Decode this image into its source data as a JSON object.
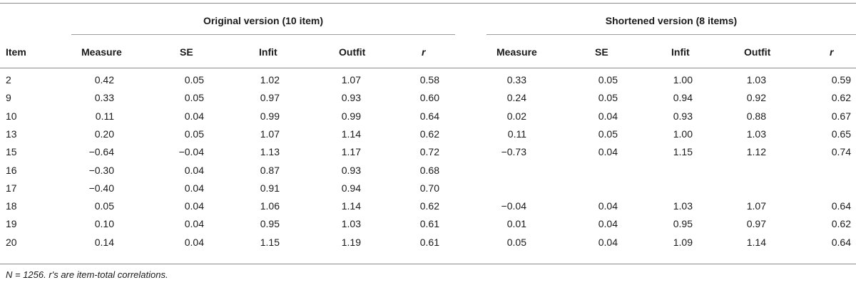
{
  "table": {
    "group_original": "Original version (10 item)",
    "group_shortened": "Shortened version (8 items)",
    "headers": {
      "item": "Item",
      "orig_measure": "Measure",
      "orig_se": "SE",
      "orig_infit": "Infit",
      "orig_outfit": "Outfit",
      "orig_r": "r",
      "short_measure": "Measure",
      "short_se": "SE",
      "short_infit": "Infit",
      "short_outfit": "Outfit",
      "short_r": "r"
    },
    "rows": [
      {
        "item": "2",
        "orig_measure": "0.42",
        "orig_se": "0.05",
        "orig_infit": "1.02",
        "orig_outfit": "1.07",
        "orig_r": "0.58",
        "short_measure": "0.33",
        "short_se": "0.05",
        "short_infit": "1.00",
        "short_outfit": "1.03",
        "short_r": "0.59"
      },
      {
        "item": "9",
        "orig_measure": "0.33",
        "orig_se": "0.05",
        "orig_infit": "0.97",
        "orig_outfit": "0.93",
        "orig_r": "0.60",
        "short_measure": "0.24",
        "short_se": "0.05",
        "short_infit": "0.94",
        "short_outfit": "0.92",
        "short_r": "0.62"
      },
      {
        "item": "10",
        "orig_measure": "0.11",
        "orig_se": "0.04",
        "orig_infit": "0.99",
        "orig_outfit": "0.99",
        "orig_r": "0.64",
        "short_measure": "0.02",
        "short_se": "0.04",
        "short_infit": "0.93",
        "short_outfit": "0.88",
        "short_r": "0.67"
      },
      {
        "item": "13",
        "orig_measure": "0.20",
        "orig_se": "0.05",
        "orig_infit": "1.07",
        "orig_outfit": "1.14",
        "orig_r": "0.62",
        "short_measure": "0.11",
        "short_se": "0.05",
        "short_infit": "1.00",
        "short_outfit": "1.03",
        "short_r": "0.65"
      },
      {
        "item": "15",
        "orig_measure": "−0.64",
        "orig_se": "−0.04",
        "orig_infit": "1.13",
        "orig_outfit": "1.17",
        "orig_r": "0.72",
        "short_measure": "−0.73",
        "short_se": "0.04",
        "short_infit": "1.15",
        "short_outfit": "1.12",
        "short_r": "0.74"
      },
      {
        "item": "16",
        "orig_measure": "−0.30",
        "orig_se": "0.04",
        "orig_infit": "0.87",
        "orig_outfit": "0.93",
        "orig_r": "0.68",
        "short_measure": "",
        "short_se": "",
        "short_infit": "",
        "short_outfit": "",
        "short_r": ""
      },
      {
        "item": "17",
        "orig_measure": "−0.40",
        "orig_se": "0.04",
        "orig_infit": "0.91",
        "orig_outfit": "0.94",
        "orig_r": "0.70",
        "short_measure": "",
        "short_se": "",
        "short_infit": "",
        "short_outfit": "",
        "short_r": ""
      },
      {
        "item": "18",
        "orig_measure": "0.05",
        "orig_se": "0.04",
        "orig_infit": "1.06",
        "orig_outfit": "1.14",
        "orig_r": "0.62",
        "short_measure": "−0.04",
        "short_se": "0.04",
        "short_infit": "1.03",
        "short_outfit": "1.07",
        "short_r": "0.64"
      },
      {
        "item": "19",
        "orig_measure": "0.10",
        "orig_se": "0.04",
        "orig_infit": "0.95",
        "orig_outfit": "1.03",
        "orig_r": "0.61",
        "short_measure": "0.01",
        "short_se": "0.04",
        "short_infit": "0.95",
        "short_outfit": "0.97",
        "short_r": "0.62"
      },
      {
        "item": "20",
        "orig_measure": "0.14",
        "orig_se": "0.04",
        "orig_infit": "1.15",
        "orig_outfit": "1.19",
        "orig_r": "0.61",
        "short_measure": "0.05",
        "short_se": "0.04",
        "short_infit": "1.09",
        "short_outfit": "1.14",
        "short_r": "0.64"
      }
    ],
    "note_n": "N = 1256.",
    "note_r_symbol": "r",
    "note_rest": "'s are item-total correlations."
  }
}
